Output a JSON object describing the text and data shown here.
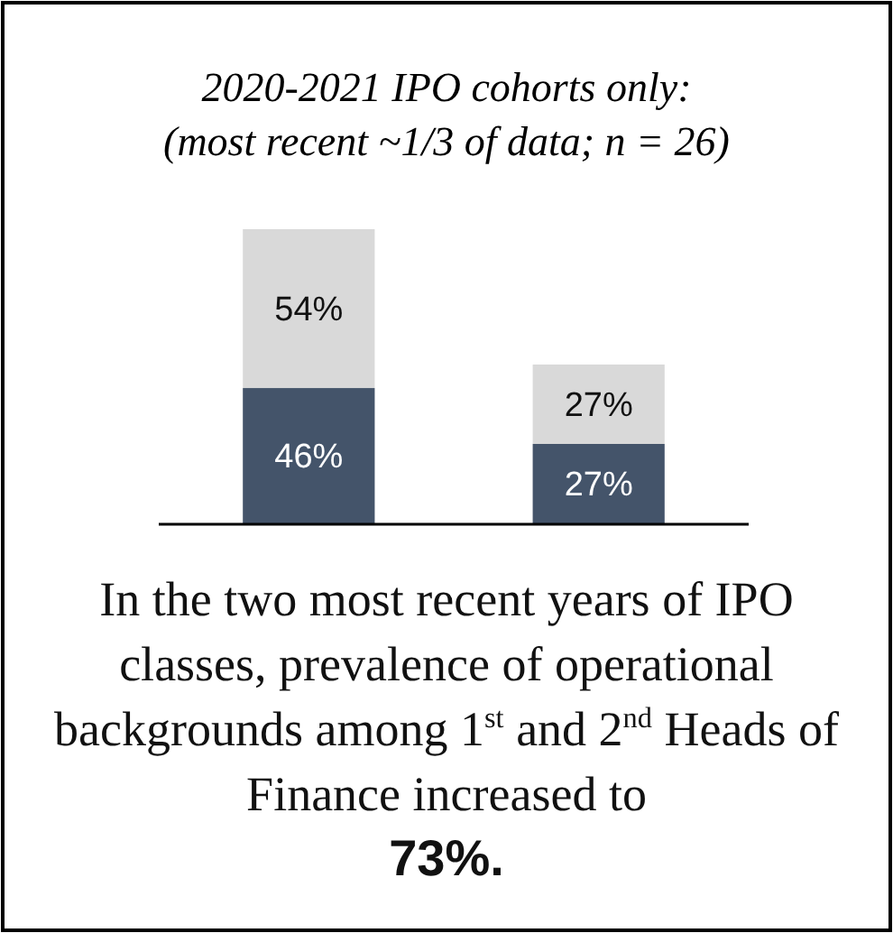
{
  "chart_data": {
    "type": "bar",
    "title": "2020-2021 IPO cohorts only:",
    "subtitle": "(most recent ~1/3 of data; n = 26)",
    "categories": [
      null,
      null
    ],
    "stacked": true,
    "ylim": [
      0,
      100
    ],
    "series": [
      {
        "color": "#44546a",
        "values": [
          46,
          27
        ],
        "value_labels": [
          "46%",
          "27%"
        ]
      },
      {
        "color": "#d9d9d9",
        "values": [
          54,
          27
        ],
        "value_labels": [
          "54%",
          "27%"
        ]
      }
    ],
    "annotations": [
      "In the two most recent years of IPO classes, prevalence of operational backgrounds among 1$^{st}$ and 2$^{nd}$ Heads of Finance increased to",
      "73%."
    ]
  }
}
